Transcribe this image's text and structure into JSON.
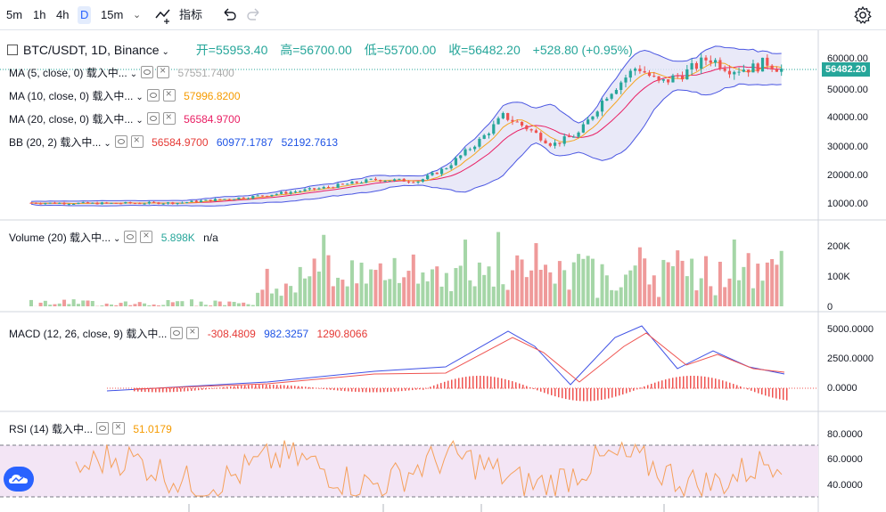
{
  "toolbar": {
    "intervals": [
      "5m",
      "1h",
      "4h",
      "D",
      "15m"
    ],
    "active_interval": "D",
    "indicators_label": "指标"
  },
  "main": {
    "symbol_title": "BTC/USDT, 1D, Binance",
    "ohlc": {
      "open": "开=55953.40",
      "high": "高=56700.00",
      "low": "低=55700.00",
      "close": "收=56482.20",
      "change": "+528.80 (+0.95%)"
    },
    "last_price": "56482.20",
    "price_axis": [
      "60000.00",
      "50000.00",
      "40000.00",
      "30000.00",
      "20000.00",
      "10000.00"
    ],
    "indicators": [
      {
        "name": "MA (5, close, 0) 载入中...",
        "values": [
          "57551.7400"
        ],
        "colors": [
          "#aaaaaa"
        ]
      },
      {
        "name": "MA (10, close, 0) 载入中...",
        "values": [
          "57996.8200"
        ],
        "colors": [
          "#f59b00"
        ]
      },
      {
        "name": "MA (20, close, 0) 载入中...",
        "values": [
          "56584.9700"
        ],
        "colors": [
          "#e91e63"
        ]
      },
      {
        "name": "BB (20, 2) 载入中...",
        "values": [
          "56584.9700",
          "60977.1787",
          "52192.7613"
        ],
        "colors": [
          "#e53935",
          "#1e53e5",
          "#1e53e5"
        ]
      }
    ]
  },
  "volume": {
    "name": "Volume (20) 载入中...",
    "value": "5.898K",
    "value2": "n/a",
    "axis": [
      "200K",
      "100K",
      "0"
    ]
  },
  "macd": {
    "name": "MACD (12, 26, close, 9) 载入中...",
    "values": [
      "-308.4809",
      "982.3257",
      "1290.8066"
    ],
    "colors": [
      "#e53935",
      "#1e53e5",
      "#e53935"
    ],
    "axis": [
      "5000.0000",
      "2500.0000",
      "0.0000"
    ]
  },
  "rsi": {
    "name": "RSI (14) 载入中...",
    "value": "51.0179",
    "axis": [
      "80.0000",
      "60.0000",
      "40.0000"
    ]
  },
  "colors": {
    "up": "#26a69a",
    "down": "#ef5350",
    "accent": "#2962ff",
    "bb_fill": "#e3e3f6",
    "rsi_band": "#f3e5f5"
  }
}
